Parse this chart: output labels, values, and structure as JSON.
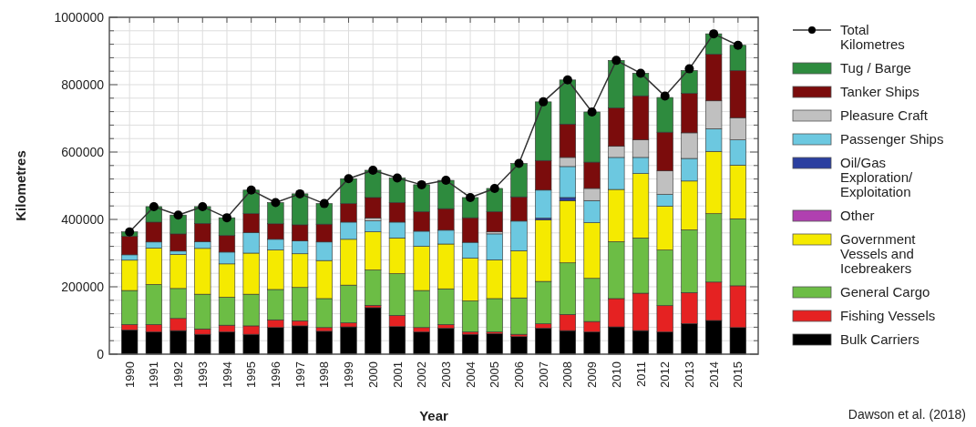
{
  "chart_data": {
    "type": "bar",
    "stacked": true,
    "xlabel": "Year",
    "ylabel": "Kilometres",
    "annotations": [
      "Dawson et al. (2018)"
    ],
    "categories": [
      "1990",
      "1991",
      "1992",
      "1993",
      "1994",
      "1995",
      "1996",
      "1997",
      "1998",
      "1999",
      "2000",
      "2001",
      "2002",
      "2003",
      "2004",
      "2005",
      "2006",
      "2007",
      "2008",
      "2009",
      "2010",
      "2011",
      "2012",
      "2013",
      "2014",
      "2015"
    ],
    "ylim": [
      0,
      1000000
    ],
    "yticks": [
      0,
      {
        "value": 40000,
        "label": null
      },
      {
        "value": 80000,
        "label": null
      },
      {
        "value": 120000,
        "label": null
      },
      {
        "value": 160000,
        "label": null
      },
      200000,
      {
        "value": 240000,
        "label": null
      },
      {
        "value": 280000,
        "label": null
      },
      {
        "value": 320000,
        "label": null
      },
      {
        "value": 360000,
        "label": null
      },
      400000,
      {
        "value": 440000,
        "label": null
      },
      {
        "value": 480000,
        "label": null
      },
      {
        "value": 520000,
        "label": null
      },
      {
        "value": 560000,
        "label": null
      },
      600000,
      {
        "value": 640000,
        "label": null
      },
      {
        "value": 680000,
        "label": null
      },
      {
        "value": 720000,
        "label": null
      },
      {
        "value": 760000,
        "label": null
      },
      800000,
      {
        "value": 840000,
        "label": null
      },
      {
        "value": 880000,
        "label": null
      },
      {
        "value": 920000,
        "label": null
      },
      {
        "value": 960000,
        "label": null
      },
      1000000
    ],
    "grid": true,
    "legend": "right",
    "series": [
      {
        "name": "Bulk Carriers",
        "color": "#000000",
        "values": [
          72000,
          66000,
          70000,
          59000,
          66000,
          59000,
          79000,
          84000,
          68000,
          81000,
          138000,
          82000,
          66000,
          77000,
          59000,
          61000,
          52000,
          77000,
          70000,
          66000,
          81000,
          70000,
          66000,
          91000,
          100000,
          79000
        ]
      },
      {
        "name": "Fishing Vessels",
        "color": "#e52222",
        "values": [
          16000,
          22000,
          36000,
          16000,
          20000,
          25000,
          23000,
          15000,
          11000,
          12000,
          7000,
          33000,
          13000,
          11000,
          7000,
          5000,
          7000,
          13000,
          48000,
          31000,
          84000,
          111000,
          78000,
          92000,
          114000,
          124000
        ]
      },
      {
        "name": "General Cargo",
        "color": "#6cbd45",
        "values": [
          101000,
          119000,
          89000,
          103000,
          83000,
          94000,
          90000,
          99000,
          86000,
          112000,
          105000,
          124000,
          110000,
          106000,
          92000,
          99000,
          108000,
          126000,
          153000,
          128000,
          169000,
          164000,
          165000,
          186000,
          203000,
          199000
        ]
      },
      {
        "name": "Government Vessels and Icebreakers",
        "color": "#f5ea00",
        "values": [
          90000,
          108000,
          101000,
          136000,
          99000,
          122000,
          117000,
          100000,
          113000,
          136000,
          113000,
          106000,
          131000,
          133000,
          127000,
          115000,
          140000,
          183000,
          185000,
          165000,
          155000,
          191000,
          130000,
          145000,
          185000,
          159000
        ]
      },
      {
        "name": "Other",
        "color": "#b040b0",
        "values": [
          0,
          0,
          0,
          0,
          0,
          0,
          0,
          0,
          0,
          0,
          0,
          0,
          0,
          0,
          0,
          0,
          0,
          0,
          0,
          0,
          0,
          0,
          0,
          0,
          0,
          0
        ]
      },
      {
        "name": "Oil/Gas Exploration/Exploitation",
        "color": "#2b3fa0",
        "values": [
          0,
          0,
          0,
          0,
          0,
          0,
          0,
          0,
          0,
          0,
          0,
          0,
          0,
          0,
          0,
          0,
          0,
          5000,
          9000,
          0,
          0,
          0,
          null,
          null,
          0,
          0
        ]
      },
      {
        "name": "Passenger Ships",
        "color": "#6cc8e0",
        "values": [
          16000,
          18000,
          10000,
          20000,
          35000,
          61000,
          32000,
          38000,
          55000,
          51000,
          33000,
          47000,
          45000,
          41000,
          47000,
          77000,
          88000,
          83000,
          92000,
          66000,
          95000,
          48000,
          35000,
          67000,
          67000,
          75000
        ]
      },
      {
        "name": "Pleasure Craft",
        "color": "#c0c0c0",
        "values": [
          0,
          0,
          0,
          0,
          0,
          0,
          0,
          0,
          0,
          0,
          8000,
          0,
          0,
          0,
          0,
          6000,
          0,
          0,
          27000,
          36000,
          33000,
          52000,
          70000,
          76000,
          83000,
          66000
        ]
      },
      {
        "name": "Tanker Ships",
        "color": "#7b0c0c",
        "values": [
          55000,
          59000,
          51000,
          54000,
          49000,
          56000,
          46000,
          48000,
          53000,
          55000,
          61000,
          58000,
          58000,
          64000,
          73000,
          60000,
          72000,
          88000,
          99000,
          78000,
          114000,
          131000,
          115000,
          117000,
          138000,
          140000
        ]
      },
      {
        "name": "Tug / Barge",
        "color": "#2e8b3e",
        "values": [
          13000,
          46000,
          56000,
          50000,
          53000,
          70000,
          63000,
          92000,
          61000,
          74000,
          81000,
          73000,
          80000,
          84000,
          60000,
          69000,
          99000,
          174000,
          131000,
          149000,
          141000,
          67000,
          103000,
          68000,
          61000,
          75000
        ]
      },
      {
        "name": "Total Kilometres",
        "type": "line",
        "marker": "circle",
        "color": "#333333",
        "values": [
          363000,
          438000,
          413000,
          438000,
          405000,
          487000,
          450000,
          476000,
          447000,
          521000,
          546000,
          523000,
          503000,
          516000,
          465000,
          492000,
          566000,
          749000,
          814000,
          719000,
          872000,
          834000,
          766000,
          847000,
          951000,
          917000
        ]
      }
    ]
  }
}
